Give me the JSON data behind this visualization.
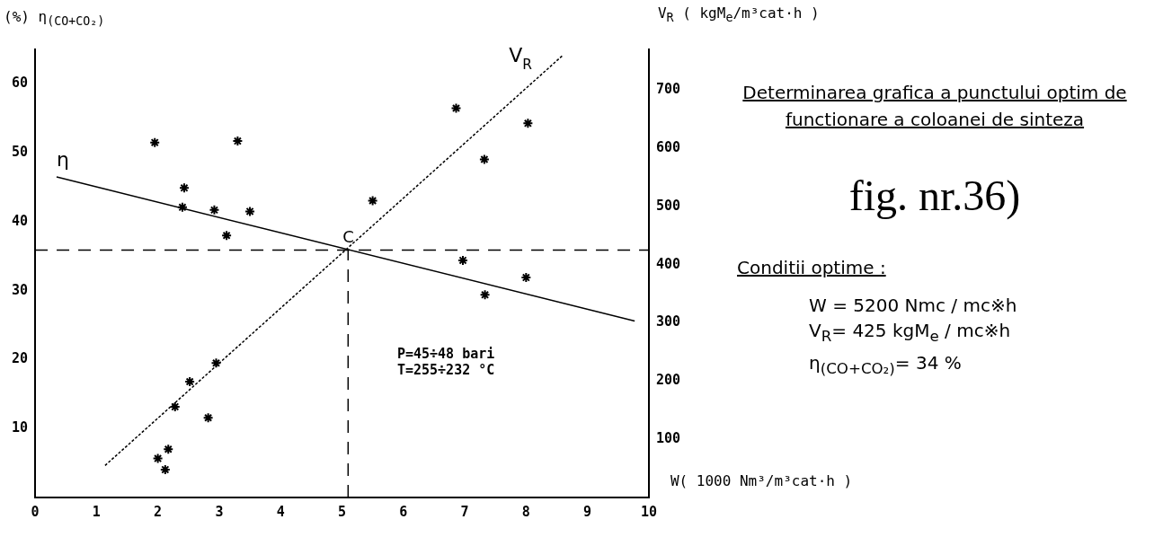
{
  "chart_data": {
    "type": "scatter",
    "title": "Determinarea grafica a punctului optim de functionare a coloanei de sinteza",
    "subtitle": "fig. nr.36)",
    "xlabel": "W( 1000 Nm³/m³cat·h )",
    "ylabel": "(%) η$_{(CO+CO₂)}$",
    "y2label": "V$_{R}$ ( kgM$_{e}$/m³cat·h )",
    "xlim": [
      0,
      10
    ],
    "xticks": [
      0,
      1,
      2,
      3,
      4,
      5,
      6,
      7,
      8,
      9,
      10
    ],
    "ylim": [
      0,
      65
    ],
    "yticks": [
      10,
      20,
      30,
      40,
      50,
      60
    ],
    "y2lim": [
      0,
      770
    ],
    "y2ticks": [
      100,
      200,
      300,
      400,
      500,
      600,
      700
    ],
    "grid": false,
    "legend": false,
    "marker": "cross",
    "series": [
      {
        "type": "scatter",
        "color": "#000000",
        "x": [
          1.95,
          3.3,
          2.43,
          2.4,
          2.92,
          3.5,
          3.12,
          6.97,
          8.0,
          7.33
        ],
        "values": [
          51.5,
          51.7,
          44.9,
          42.1,
          41.7,
          41.5,
          38,
          34.4,
          31.9,
          29.4
        ]
      },
      {
        "type": "line",
        "name": "η",
        "color": "#000000",
        "marker": "none",
        "line_style": "solid",
        "x": [
          0.35,
          9.77
        ],
        "values": [
          46.5,
          25.6
        ]
      },
      {
        "type": "scatter",
        "axis": "y2",
        "color": "#000000",
        "x": [
          2.95,
          2.52,
          2.28,
          2.82,
          2.17,
          2.0,
          2.12,
          5.5,
          6.86,
          8.03,
          7.32
        ],
        "values": [
          231,
          199,
          156,
          137,
          83,
          67,
          48,
          510,
          669,
          643,
          581
        ]
      },
      {
        "type": "line",
        "axis": "y2",
        "name": "V$_{R}$",
        "color": "#000000",
        "marker": "none",
        "line_style": "dotted",
        "x": [
          1.14,
          8.6
        ],
        "values": [
          55,
          760
        ]
      }
    ],
    "ref_lines": [
      {
        "axis": "y2",
        "value": 425,
        "line_style": "dashed"
      },
      {
        "axis": "x",
        "value": 5.1,
        "line_style": "dashed"
      }
    ],
    "annotations": [
      {
        "text": "C",
        "x": 5.1,
        "y": 36
      },
      "P=45÷48 bari\nT=255÷232 °C",
      "Conditii optime :",
      "W = 5200 Nmc / mc※h",
      "V$_{R}$= 425 kgM$_{e}$ / mc※h",
      "η$_{(CO+CO₂)}$= 34 %"
    ]
  }
}
